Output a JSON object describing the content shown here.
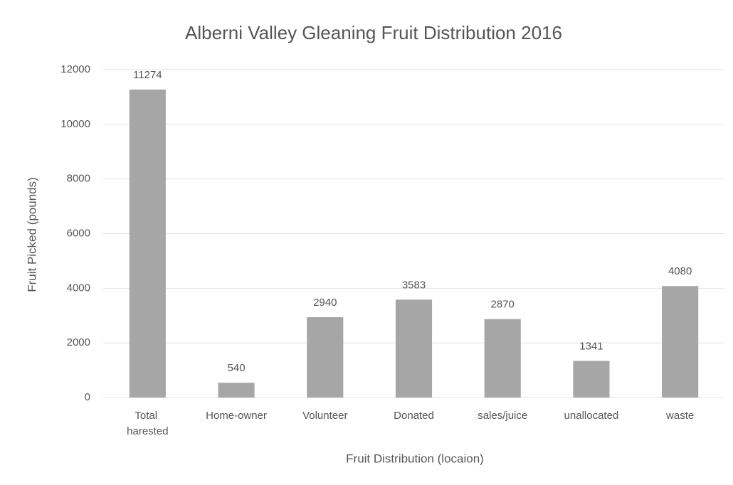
{
  "chart_data": {
    "type": "bar",
    "title": "Alberni Valley Gleaning Fruit Distribution 2016",
    "x_label": "Fruit Distribution (locaion)",
    "y_label": "Fruit Picked (pounds)",
    "categories": [
      "Total harested",
      "Home-owner",
      "Volunteer",
      "Donated",
      "sales/juice",
      "unallocated",
      "waste"
    ],
    "values": [
      11274,
      540,
      2940,
      3583,
      2870,
      1341,
      4080
    ],
    "color": "#a6a6a6",
    "ylim": [
      0,
      12000
    ],
    "yticks": [
      0,
      2000,
      4000,
      6000,
      8000,
      10000,
      12000
    ],
    "grid": true
  }
}
